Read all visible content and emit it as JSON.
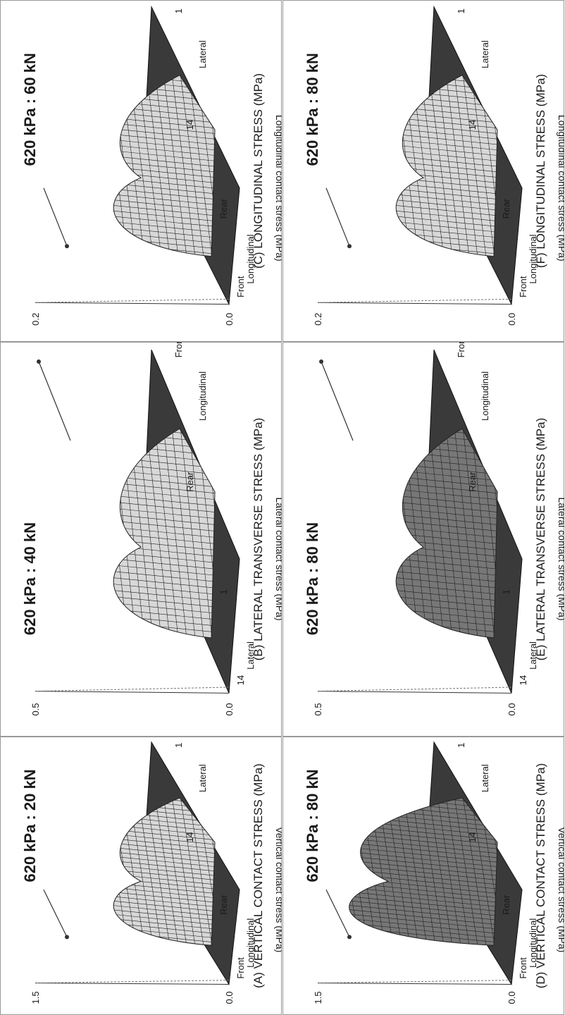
{
  "panels": [
    {
      "title": "620 kPa : 20 kN",
      "axis_ticks": [
        "1.5",
        "0.0"
      ],
      "labels": [
        "Front",
        "Longitudinal",
        "Rear",
        "14",
        "Lateral",
        "1"
      ],
      "y_axis_label": "Vertical contact stress (MPa)",
      "caption": "(A) VERTICAL CONTACT STRESS (MPa)"
    },
    {
      "title": "620 kPa : 40 kN",
      "axis_ticks": [
        "0.5",
        "0.0"
      ],
      "labels": [
        "14",
        "Lateral",
        "1",
        "Rear",
        "Longitudinal",
        "Front"
      ],
      "y_axis_label": "Lateral contact stress (MPa)",
      "caption": "(B) LATERAL TRANSVERSE STRESS (MPa)"
    },
    {
      "title": "620 kPa : 60 kN",
      "axis_ticks": [
        "0.2",
        "0.0"
      ],
      "labels": [
        "Front",
        "Longitudinal",
        "Rear",
        "14",
        "Lateral",
        "1"
      ],
      "y_axis_label": "Longitudinal contact stress (MPa)",
      "caption": "(C) LONGITUDINAL STRESS (MPa)"
    },
    {
      "title": "620 kPa : 80 kN",
      "axis_ticks": [
        "1.5",
        "0.0"
      ],
      "labels": [
        "Front",
        "Longitudinal",
        "Rear",
        "14",
        "Lateral",
        "1"
      ],
      "y_axis_label": "Vertical contact stress (MPa)",
      "caption": "(D) VERTICAL CONTACT STRESS (MPa)"
    },
    {
      "title": "620 kPa : 80 kN",
      "axis_ticks": [
        "0.5",
        "0.0"
      ],
      "labels": [
        "14",
        "Lateral",
        "1",
        "Rear",
        "Longitudinal",
        "Front"
      ],
      "y_axis_label": "Lateral contact stress (MPa)",
      "caption": "(E) LATERAL TRANSVERSE STRESS (MPa)"
    },
    {
      "title": "620 kPa : 80 kN",
      "axis_ticks": [
        "0.2",
        "0.0"
      ],
      "labels": [
        "Front",
        "Longitudinal",
        "Rear",
        "14",
        "Lateral",
        "1"
      ],
      "y_axis_label": "Longitudinal contact stress (MPa)",
      "caption": "(F) LONGITUDINAL STRESS (MPa)"
    }
  ]
}
